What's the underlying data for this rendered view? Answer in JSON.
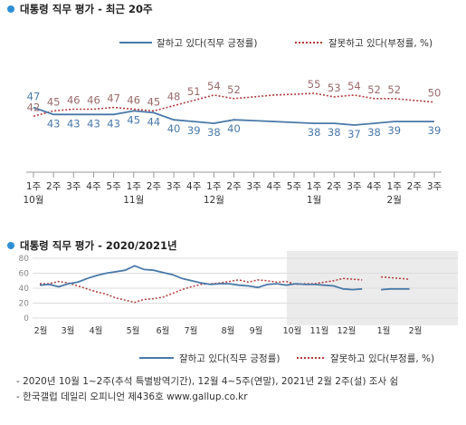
{
  "top_chart": {
    "title": "대통령 직무 평가 - 최근 20주",
    "chart_data": {
      "type": "line",
      "x": [
        "1주",
        "2주",
        "3주",
        "4주",
        "5주",
        "1주",
        "2주",
        "3주",
        "4주",
        "1주",
        "2주",
        "3주",
        "4주",
        "5주",
        "1주",
        "2주",
        "3주",
        "4주",
        "1주",
        "2주",
        "3주"
      ],
      "month_labels": [
        {
          "index": 0,
          "label": "10월"
        },
        {
          "index": 5,
          "label": "11월"
        },
        {
          "index": 9,
          "label": "12월"
        },
        {
          "index": 14,
          "label": "1월"
        },
        {
          "index": 18,
          "label": "2월"
        }
      ],
      "series": [
        {
          "name": "잘하고 있다(직무 긍정률)",
          "color": "#4a79a8",
          "style": "solid",
          "values": [
            47,
            43,
            43,
            43,
            43,
            45,
            44,
            40,
            39,
            38,
            40,
            null,
            null,
            null,
            38,
            38,
            37,
            38,
            39,
            null,
            39
          ],
          "labels": [
            47,
            43,
            43,
            43,
            43,
            45,
            44,
            40,
            39,
            38,
            40,
            null,
            null,
            null,
            38,
            38,
            37,
            38,
            39,
            null,
            39
          ]
        },
        {
          "name": "잘못하고 있다(부정률, %)",
          "color": "#b03a3a",
          "style": "dotted",
          "values": [
            42,
            45,
            46,
            46,
            47,
            46,
            45,
            48,
            51,
            54,
            52,
            null,
            null,
            null,
            55,
            53,
            54,
            52,
            52,
            null,
            50
          ],
          "labels": [
            42,
            45,
            46,
            46,
            47,
            46,
            45,
            48,
            51,
            54,
            52,
            null,
            null,
            null,
            55,
            53,
            54,
            52,
            52,
            null,
            50
          ]
        }
      ],
      "line_values_pos": [
        47,
        43,
        43,
        43,
        43,
        45,
        44,
        40,
        39,
        38,
        40,
        39.5,
        39,
        38.5,
        38,
        38,
        37,
        38,
        39,
        39,
        39
      ],
      "line_values_neg": [
        42,
        45,
        46,
        46,
        47,
        46,
        45,
        48,
        51,
        54,
        52,
        53,
        54,
        54.5,
        55,
        53,
        54,
        52,
        52,
        51,
        50
      ]
    }
  },
  "bottom_chart": {
    "title": "대통령 직무 평가 - 2020/2021년",
    "chart_data": {
      "type": "line",
      "y_ticks": [
        0,
        20,
        40,
        60,
        80
      ],
      "ylim": [
        0,
        80
      ],
      "x_labels": [
        "2월",
        "3월",
        "4월",
        "5월",
        "6월",
        "7월",
        "8월",
        "9월",
        "10월",
        "11월",
        "12월",
        "1월",
        "2월"
      ],
      "highlight_from_label": "10월",
      "series": [
        {
          "name": "잘하고 있다(직무 긍정률)",
          "color": "#4a79a8",
          "style": "solid",
          "values": [
            44,
            45,
            42,
            46,
            48,
            53,
            57,
            60,
            62,
            64,
            70,
            65,
            64,
            61,
            58,
            53,
            50,
            47,
            45,
            46,
            46,
            44,
            43,
            41,
            45,
            46,
            44,
            46,
            45,
            45,
            44,
            43,
            39,
            38,
            39,
            null,
            38,
            39,
            39,
            39,
            null,
            39,
            null
          ]
        },
        {
          "name": "잘못하고 있다(부정률, %)",
          "color": "#b03a3a",
          "style": "dotted",
          "values": [
            46,
            46,
            49,
            47,
            43,
            39,
            35,
            32,
            27,
            24,
            21,
            25,
            26,
            28,
            33,
            38,
            42,
            45,
            46,
            47,
            49,
            51,
            48,
            51,
            50,
            48,
            49,
            45,
            46,
            46,
            48,
            50,
            53,
            52,
            51,
            null,
            55,
            54,
            53,
            52,
            null,
            50,
            null
          ]
        }
      ]
    }
  },
  "legend": {
    "positive_label": "잘하고 있다(직무 긍정률)",
    "negative_label": "잘못하고 있다(부정률, %)"
  },
  "notes": [
    "- 2020년 10월 1~2주(추석 특별방역기간), 12월 4~5주(연말), 2021년 2월 2주(설) 조사 쉼",
    "- 한국갤럽 데일리 오피니언 제436호 www.gallup.co.kr"
  ],
  "colors": {
    "positive": "#4a79a8",
    "negative": "#b03a3a",
    "bullet": "#2e8fd6",
    "shade": "#ebebeb"
  }
}
